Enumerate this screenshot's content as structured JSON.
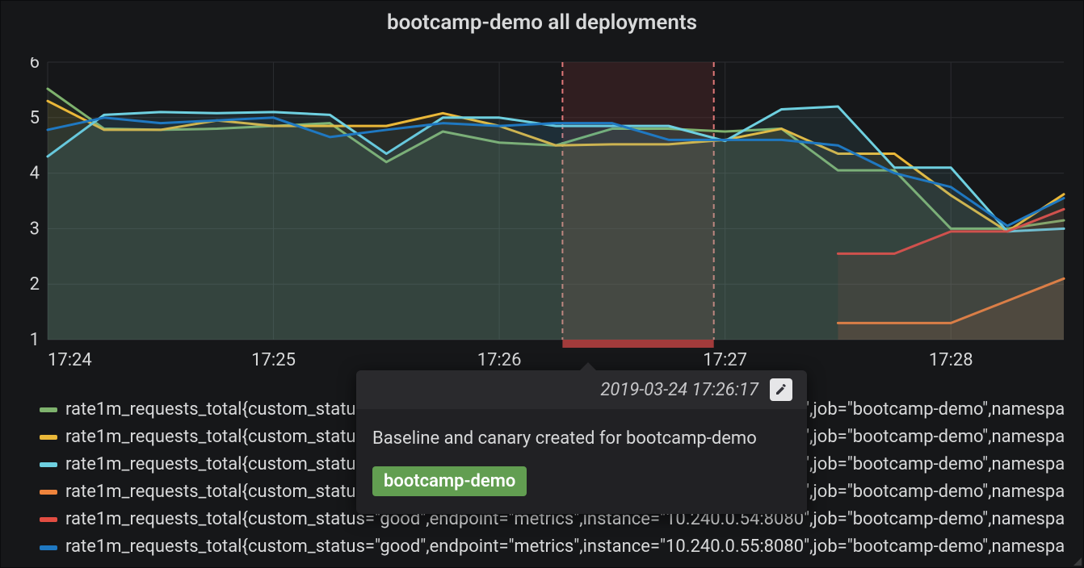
{
  "title": "bootcamp-demo all deployments",
  "chart": {
    "type": "line-area",
    "background_color": "#161719",
    "grid_color": "#2c2d31",
    "axis_font_size": 22,
    "axis_color": "#d8d9da",
    "ylim": [
      1,
      6
    ],
    "ytick_step": 1,
    "yticks": [
      1,
      2,
      3,
      4,
      5,
      6
    ],
    "xticks": [
      "17:24",
      "17:25",
      "17:26",
      "17:27",
      "17:28"
    ],
    "x_range": [
      0,
      4.5
    ],
    "annotation_region": {
      "x_start": 2.28,
      "x_end": 2.95,
      "fill": "#582a2a",
      "fill_opacity": 0.4,
      "border_color": "#e07878",
      "border_dash": "6,5",
      "underline_color": "#a23b3b"
    },
    "line_width": 3,
    "fill_opacity": 0.09,
    "series": [
      {
        "name": "rate1m_requests_total{custom_status=\"good\",endpoint=\"metrics\",instance=\"10.240.0.50:8080\",job=\"bootcamp-demo\",namespa",
        "color": "#7eb26d",
        "data": [
          5.52,
          4.8,
          4.78,
          4.8,
          4.85,
          4.9,
          4.2,
          4.75,
          4.55,
          4.5,
          4.8,
          4.8,
          4.75,
          4.8,
          4.05,
          4.05,
          3.0,
          3.0,
          3.15
        ]
      },
      {
        "name": "rate1m_requests_total{custom_status=\"good\",endpoint=\"metrics\",instance=\"10.240.0.51:8080\",job=\"bootcamp-demo\",namespa",
        "color": "#eab839",
        "data": [
          5.3,
          4.78,
          4.78,
          4.95,
          4.85,
          4.85,
          4.85,
          5.08,
          4.85,
          4.5,
          4.52,
          4.52,
          4.6,
          4.8,
          4.35,
          4.35,
          3.6,
          2.95,
          3.62
        ]
      },
      {
        "name": "rate1m_requests_total{custom_status=\"good\",endpoint=\"metrics\",instance=\"10.240.0.52:8080\",job=\"bootcamp-demo\",namespa",
        "color": "#6ed0e0",
        "data": [
          4.3,
          5.05,
          5.1,
          5.08,
          5.1,
          5.05,
          4.35,
          5.0,
          5.0,
          4.85,
          4.85,
          4.85,
          4.58,
          5.15,
          5.2,
          4.1,
          4.1,
          2.95,
          3.0
        ]
      },
      {
        "name": "rate1m_requests_total{custom_status=\"good\",endpoint=\"metrics\",instance=\"10.240.0.53:8080\",job=\"bootcamp-demo\",namespa",
        "color": "#ef843c",
        "data": [
          null,
          null,
          null,
          null,
          null,
          null,
          null,
          null,
          null,
          null,
          null,
          null,
          null,
          null,
          1.3,
          1.3,
          1.3,
          1.7,
          2.1
        ]
      },
      {
        "name": "rate1m_requests_total{custom_status=\"good\",endpoint=\"metrics\",instance=\"10.240.0.54:8080\",job=\"bootcamp-demo\",namespa",
        "color": "#e24d42",
        "data": [
          null,
          null,
          null,
          null,
          null,
          null,
          null,
          null,
          null,
          null,
          null,
          null,
          null,
          null,
          2.55,
          2.55,
          2.95,
          2.95,
          3.35
        ]
      },
      {
        "name": "rate1m_requests_total{custom_status=\"good\",endpoint=\"metrics\",instance=\"10.240.0.55:8080\",job=\"bootcamp-demo\",namespa",
        "color": "#1f78c1",
        "data": [
          4.78,
          5.0,
          4.9,
          4.95,
          5.0,
          4.65,
          4.78,
          4.9,
          4.85,
          4.9,
          4.9,
          4.6,
          4.6,
          4.6,
          4.5,
          4.0,
          3.75,
          3.05,
          3.55
        ]
      }
    ]
  },
  "tooltip": {
    "timestamp": "2019-03-24 17:26:17",
    "message": "Baseline and canary created for bootcamp-demo",
    "tag": "bootcamp-demo",
    "tag_bg": "#629e51",
    "edit_icon_color": "#33333a"
  }
}
